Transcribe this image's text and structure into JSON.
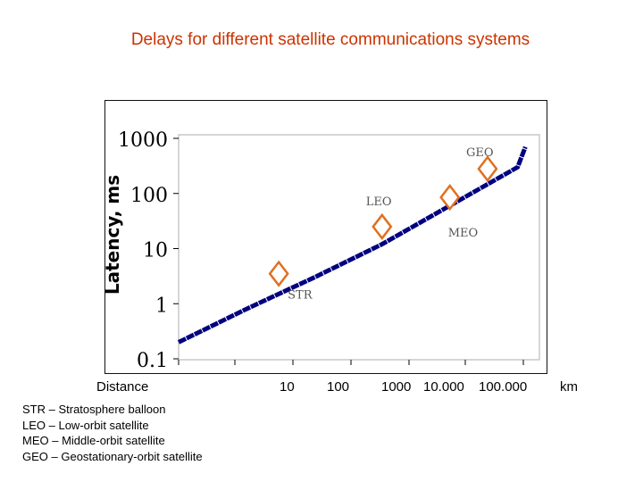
{
  "title": "Delays for different satellite communications systems",
  "chart_data": {
    "type": "line",
    "title": "Delays for different satellite communications systems",
    "ylabel": "Latency, ms",
    "xlabel": "Distance",
    "x_unit": "km",
    "y_scale": "log",
    "ylim": [
      0.1,
      1000
    ],
    "y_ticks": [
      "1000",
      "100",
      "10",
      "1",
      "0.1"
    ],
    "x_tick_labels": [
      "10",
      "100",
      "1000",
      "10.000",
      "100.000"
    ],
    "series": [
      {
        "name": "Latency",
        "color": "#000080",
        "x": [
          1,
          10,
          100,
          1000,
          10000,
          100000,
          130000
        ],
        "y": [
          0.2,
          0.8,
          3,
          12,
          60,
          300,
          700
        ]
      }
    ],
    "markers": [
      {
        "label": "STR",
        "x": 30,
        "y": 3.5
      },
      {
        "label": "LEO",
        "x": 1000,
        "y": 25
      },
      {
        "label": "MEO",
        "x": 10000,
        "y": 85
      },
      {
        "label": "GEO",
        "x": 36000,
        "y": 280
      }
    ],
    "marker_color": "#e07020"
  },
  "legend": [
    "STR – Stratosphere balloon",
    "LEO – Low-orbit satellite",
    "MEO – Middle-orbit satellite",
    "GEO – Geostationary-orbit satellite"
  ]
}
